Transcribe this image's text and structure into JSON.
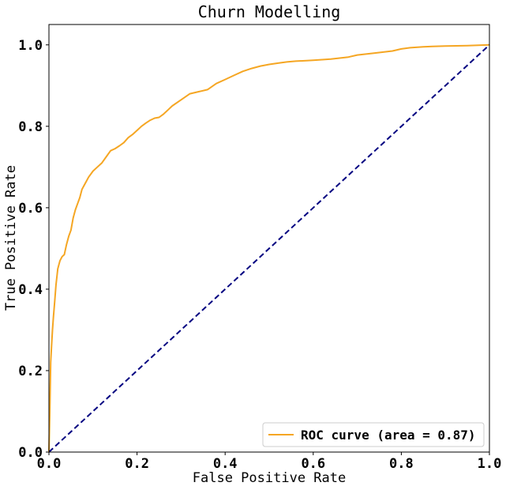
{
  "chart_data": {
    "type": "line",
    "title": "Churn Modelling",
    "xlabel": "False Positive Rate",
    "ylabel": "True Positive Rate",
    "xlim": [
      0.0,
      1.0
    ],
    "ylim": [
      0.0,
      1.05
    ],
    "xticks": [
      0.0,
      0.2,
      0.4,
      0.6,
      0.8,
      1.0
    ],
    "xtick_labels": [
      "0.0",
      "0.2",
      "0.4",
      "0.6",
      "0.8",
      "1.0"
    ],
    "yticks": [
      0.0,
      0.2,
      0.4,
      0.6,
      0.8,
      1.0
    ],
    "ytick_labels": [
      "0.0",
      "0.2",
      "0.4",
      "0.6",
      "0.8",
      "1.0"
    ],
    "grid": false,
    "legend_position": "lower-right",
    "series": [
      {
        "name": "ROC curve (area = 0.87)",
        "color": "#f5a623",
        "style": "solid",
        "x": [
          0.0,
          0.002,
          0.004,
          0.006,
          0.008,
          0.01,
          0.013,
          0.016,
          0.02,
          0.025,
          0.03,
          0.035,
          0.04,
          0.045,
          0.05,
          0.055,
          0.06,
          0.065,
          0.07,
          0.075,
          0.08,
          0.085,
          0.09,
          0.1,
          0.11,
          0.12,
          0.13,
          0.14,
          0.15,
          0.16,
          0.17,
          0.18,
          0.19,
          0.2,
          0.21,
          0.22,
          0.23,
          0.24,
          0.25,
          0.26,
          0.27,
          0.28,
          0.3,
          0.32,
          0.34,
          0.36,
          0.38,
          0.4,
          0.42,
          0.44,
          0.46,
          0.48,
          0.5,
          0.52,
          0.54,
          0.56,
          0.6,
          0.64,
          0.68,
          0.7,
          0.74,
          0.78,
          0.8,
          0.82,
          0.85,
          0.87,
          0.9,
          0.95,
          1.0
        ],
        "y": [
          0.0,
          0.1,
          0.22,
          0.26,
          0.3,
          0.33,
          0.37,
          0.41,
          0.45,
          0.47,
          0.48,
          0.485,
          0.51,
          0.53,
          0.545,
          0.575,
          0.595,
          0.61,
          0.625,
          0.645,
          0.655,
          0.665,
          0.675,
          0.69,
          0.7,
          0.71,
          0.725,
          0.74,
          0.745,
          0.752,
          0.76,
          0.772,
          0.78,
          0.79,
          0.8,
          0.808,
          0.815,
          0.82,
          0.822,
          0.83,
          0.84,
          0.85,
          0.865,
          0.88,
          0.885,
          0.89,
          0.905,
          0.915,
          0.925,
          0.935,
          0.942,
          0.948,
          0.952,
          0.955,
          0.958,
          0.96,
          0.962,
          0.965,
          0.97,
          0.975,
          0.98,
          0.985,
          0.99,
          0.993,
          0.995,
          0.996,
          0.997,
          0.998,
          1.0
        ]
      },
      {
        "name": "",
        "color": "#000080",
        "style": "dashed",
        "x": [
          0.0,
          1.0
        ],
        "y": [
          0.0,
          1.0
        ]
      }
    ]
  }
}
